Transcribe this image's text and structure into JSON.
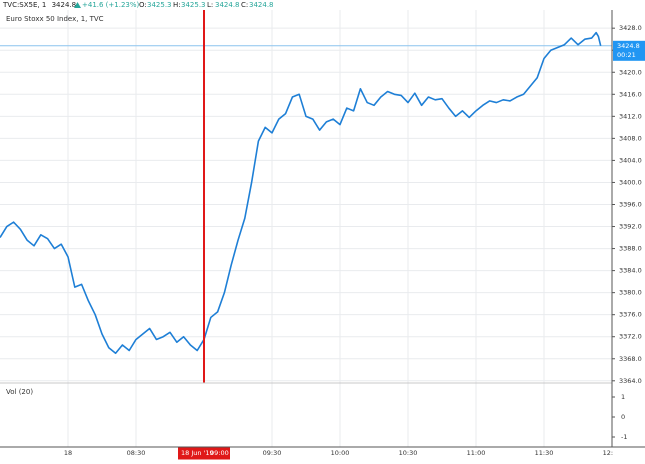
{
  "chart_data": {
    "type": "line",
    "symbol": "TVC:SX5E, 1",
    "last": 3424.8,
    "change": "+41.6 (+1.23%)",
    "ohlc": [
      {
        "label": "O:",
        "value": 3425.3
      },
      {
        "label": "H:",
        "value": 3425.3
      },
      {
        "label": "L:",
        "value": 3424.8
      },
      {
        "label": "C:",
        "value": 3424.8
      }
    ],
    "title": "Euro Stoxx 50 Index, 1, TVC",
    "color": "#1e7fd6",
    "x": [
      450,
      453,
      456,
      459,
      462,
      465,
      468,
      471,
      474,
      477,
      480,
      483,
      486,
      489,
      492,
      495,
      498,
      501,
      504,
      507,
      510,
      513,
      516,
      519,
      522,
      525,
      528,
      531,
      534,
      537,
      540,
      543,
      546,
      549,
      552,
      555,
      558,
      561,
      564,
      567,
      570,
      573,
      576,
      579,
      582,
      585,
      588,
      591,
      594,
      597,
      600,
      603,
      606,
      609,
      612,
      615,
      618,
      621,
      624,
      627,
      630,
      633,
      636,
      639,
      642,
      645,
      648,
      651,
      654,
      657,
      660,
      663,
      666,
      669,
      672,
      675,
      678,
      681,
      684,
      687,
      690,
      693,
      696,
      699,
      702,
      705,
      708,
      711,
      713,
      714,
      715
    ],
    "values": [
      3390.0,
      3392.0,
      3392.8,
      3391.5,
      3389.5,
      3388.5,
      3390.5,
      3389.8,
      3388.0,
      3388.8,
      3386.5,
      3381.0,
      3381.5,
      3378.5,
      3376.0,
      3372.5,
      3370.0,
      3369.0,
      3370.5,
      3369.5,
      3371.5,
      3372.5,
      3373.5,
      3371.5,
      3372.0,
      3372.8,
      3371.0,
      3372.0,
      3370.5,
      3369.5,
      3371.5,
      3375.5,
      3376.5,
      3380.0,
      3385.0,
      3389.5,
      3393.5,
      3400.0,
      3407.5,
      3410.0,
      3409.0,
      3411.5,
      3412.5,
      3415.5,
      3416.0,
      3412.0,
      3411.5,
      3409.5,
      3411.0,
      3411.5,
      3410.5,
      3413.5,
      3413.0,
      3417.0,
      3414.5,
      3414.0,
      3415.5,
      3416.5,
      3416.0,
      3415.8,
      3414.5,
      3416.2,
      3414.0,
      3415.5,
      3415.0,
      3415.2,
      3413.5,
      3412.0,
      3413.0,
      3411.8,
      3413.0,
      3414.0,
      3414.8,
      3414.5,
      3415.0,
      3414.8,
      3415.5,
      3416.0,
      3417.5,
      3419.0,
      3422.5,
      3424.0,
      3424.5,
      3425.0,
      3426.2,
      3425.0,
      3426.0,
      3426.2,
      3427.2,
      3426.5,
      3424.8
    ],
    "xlim": [
      450,
      720
    ],
    "xticks": [
      {
        "value": 480,
        "label": "18"
      },
      {
        "value": 510,
        "label": "08:30"
      },
      {
        "value": 570,
        "label": "09:30"
      },
      {
        "value": 600,
        "label": "10:00"
      },
      {
        "value": 630,
        "label": "10:30"
      },
      {
        "value": 660,
        "label": "11:00"
      },
      {
        "value": 690,
        "label": "11:30"
      },
      {
        "value": 720,
        "label": "12:00"
      }
    ],
    "ylim": [
      3363.6,
      3431.3
    ],
    "yticks": [
      {
        "value": 3364,
        "label": "3364.0"
      },
      {
        "value": 3368,
        "label": "3368.0"
      },
      {
        "value": 3372,
        "label": "3372.0"
      },
      {
        "value": 3376,
        "label": "3376.0"
      },
      {
        "value": 3380,
        "label": "3380.0"
      },
      {
        "value": 3384,
        "label": "3384.0"
      },
      {
        "value": 3388,
        "label": "3388.0"
      },
      {
        "value": 3392,
        "label": "3392.0"
      },
      {
        "value": 3396,
        "label": "3396.0"
      },
      {
        "value": 3400,
        "label": "3400.0"
      },
      {
        "value": 3404,
        "label": "3404.0"
      },
      {
        "value": 3408,
        "label": "3408.0"
      },
      {
        "value": 3412,
        "label": "3412.0"
      },
      {
        "value": 3416,
        "label": "3416.0"
      },
      {
        "value": 3420,
        "label": "3420.0"
      },
      {
        "value": 3424,
        "label": "3424.0"
      },
      {
        "value": 3428,
        "label": "3428.0"
      }
    ],
    "grid": true,
    "last_price": 3424.8,
    "countdown": "00:21",
    "crosshair": {
      "x": 540,
      "date": "18 Jun '19",
      "time": "09:00",
      "color": "#e01818"
    },
    "volume": {
      "title": "Vol (20)",
      "ylim": [
        -1.5,
        1.7
      ],
      "yticks": [
        1,
        0,
        -1
      ]
    }
  }
}
